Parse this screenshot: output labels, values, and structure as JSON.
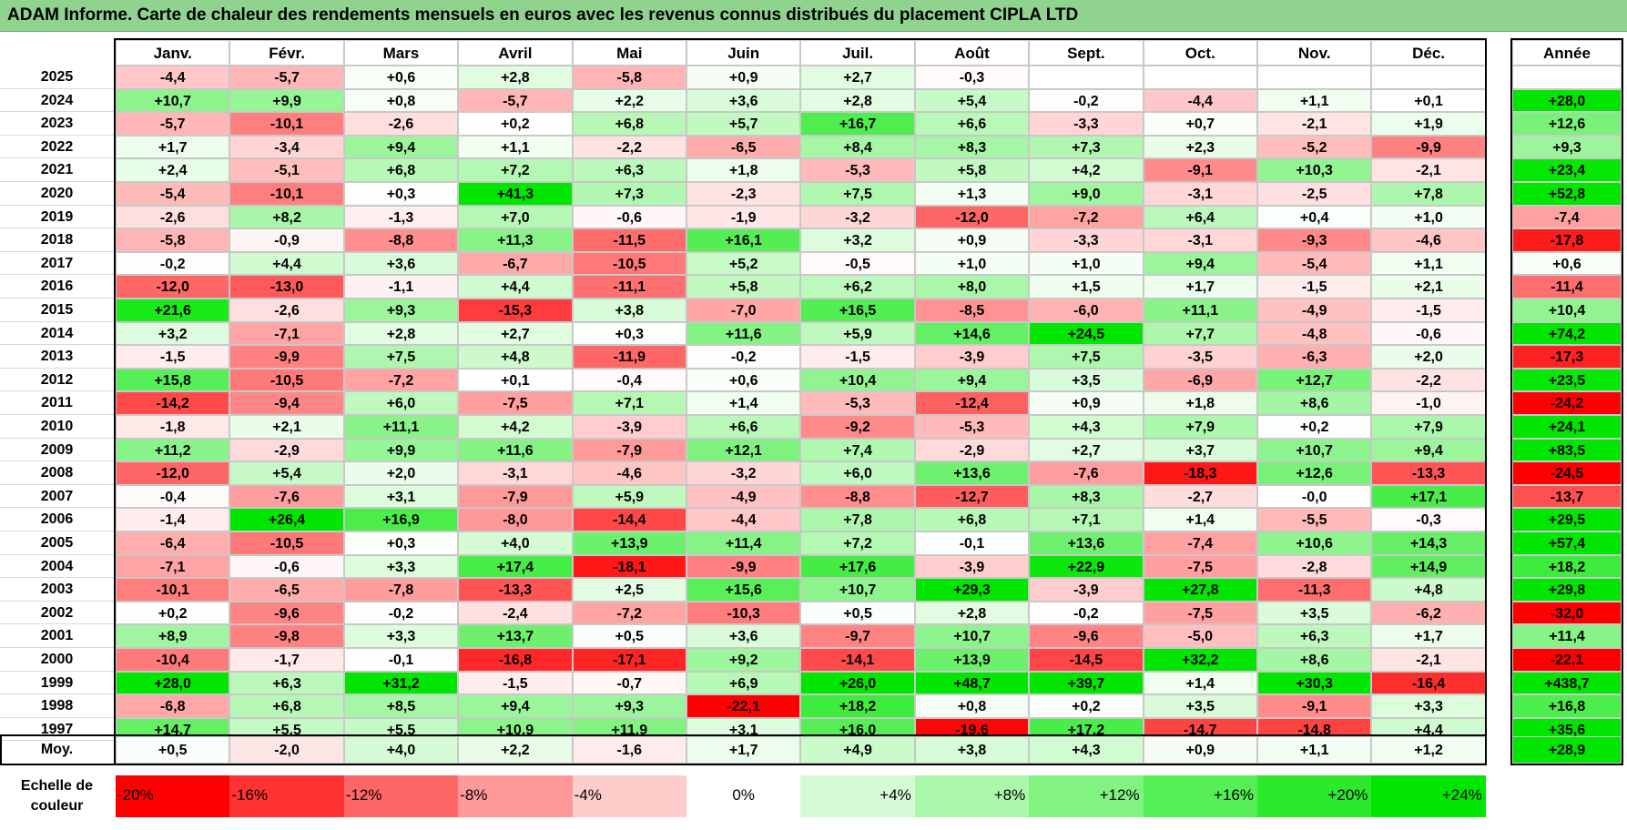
{
  "title": "ADAM Informe. Carte de chaleur des rendements mensuels en euros avec les revenus connus distribués du placement CIPLA LTD",
  "colors": {
    "title_bg": "#8fd38f",
    "neg_strong": "#ff0000",
    "pos_strong": "#00e600",
    "neutral": "#ffffff"
  },
  "chart_data": {
    "type": "heatmap",
    "title": "ADAM Informe. Carte de chaleur des rendements mensuels en euros avec les revenus connus distribués du placement CIPLA LTD",
    "months": [
      "Janv.",
      "Févr.",
      "Mars",
      "Avril",
      "Mai",
      "Juin",
      "Juil.",
      "Août",
      "Sept.",
      "Oct.",
      "Nov.",
      "Déc."
    ],
    "year_header": "Année",
    "rows": [
      {
        "year": "2025",
        "values": [
          -4.4,
          -5.7,
          0.6,
          2.8,
          -5.8,
          0.9,
          2.7,
          -0.3,
          null,
          null,
          null,
          null
        ],
        "labels": [
          "-4,4",
          "-5,7",
          "+0,6",
          "+2,8",
          "-5,8",
          "+0,9",
          "+2,7",
          "-0,3",
          "",
          "",
          "",
          ""
        ],
        "annual": null,
        "annual_label": ""
      },
      {
        "year": "2024",
        "values": [
          10.7,
          9.9,
          0.8,
          -5.7,
          2.2,
          3.6,
          2.8,
          5.4,
          -0.2,
          -4.4,
          1.1,
          0.1
        ],
        "labels": [
          "+10,7",
          "+9,9",
          "+0,8",
          "-5,7",
          "+2,2",
          "+3,6",
          "+2,8",
          "+5,4",
          "-0,2",
          "-4,4",
          "+1,1",
          "+0,1"
        ],
        "annual": 28.0,
        "annual_label": "+28,0"
      },
      {
        "year": "2023",
        "values": [
          -5.7,
          -10.1,
          -2.6,
          0.2,
          6.8,
          5.7,
          16.7,
          6.6,
          -3.3,
          0.7,
          -2.1,
          1.9
        ],
        "labels": [
          "-5,7",
          "-10,1",
          "-2,6",
          "+0,2",
          "+6,8",
          "+5,7",
          "+16,7",
          "+6,6",
          "-3,3",
          "+0,7",
          "-2,1",
          "+1,9"
        ],
        "annual": 12.6,
        "annual_label": "+12,6"
      },
      {
        "year": "2022",
        "values": [
          1.7,
          -3.4,
          9.4,
          1.1,
          -2.2,
          -6.5,
          8.4,
          8.3,
          7.3,
          2.3,
          -5.2,
          -9.9
        ],
        "labels": [
          "+1,7",
          "-3,4",
          "+9,4",
          "+1,1",
          "-2,2",
          "-6,5",
          "+8,4",
          "+8,3",
          "+7,3",
          "+2,3",
          "-5,2",
          "-9,9"
        ],
        "annual": 9.3,
        "annual_label": "+9,3"
      },
      {
        "year": "2021",
        "values": [
          2.4,
          -5.1,
          6.8,
          7.2,
          6.3,
          1.8,
          -5.3,
          5.8,
          4.2,
          -9.1,
          10.3,
          -2.1
        ],
        "labels": [
          "+2,4",
          "-5,1",
          "+6,8",
          "+7,2",
          "+6,3",
          "+1,8",
          "-5,3",
          "+5,8",
          "+4,2",
          "-9,1",
          "+10,3",
          "-2,1"
        ],
        "annual": 23.4,
        "annual_label": "+23,4"
      },
      {
        "year": "2020",
        "values": [
          -5.4,
          -10.1,
          0.3,
          41.3,
          7.3,
          -2.3,
          7.5,
          1.3,
          9.0,
          -3.1,
          -2.5,
          7.8
        ],
        "labels": [
          "-5,4",
          "-10,1",
          "+0,3",
          "+41,3",
          "+7,3",
          "-2,3",
          "+7,5",
          "+1,3",
          "+9,0",
          "-3,1",
          "-2,5",
          "+7,8"
        ],
        "annual": 52.8,
        "annual_label": "+52,8"
      },
      {
        "year": "2019",
        "values": [
          -2.6,
          8.2,
          -1.3,
          7.0,
          -0.6,
          -1.9,
          -3.2,
          -12.0,
          -7.2,
          6.4,
          0.4,
          1.0
        ],
        "labels": [
          "-2,6",
          "+8,2",
          "-1,3",
          "+7,0",
          "-0,6",
          "-1,9",
          "-3,2",
          "-12,0",
          "-7,2",
          "+6,4",
          "+0,4",
          "+1,0"
        ],
        "annual": -7.4,
        "annual_label": "-7,4"
      },
      {
        "year": "2018",
        "values": [
          -5.8,
          -0.9,
          -8.8,
          11.3,
          -11.5,
          16.1,
          3.2,
          0.9,
          -3.3,
          -3.1,
          -9.3,
          -4.6
        ],
        "labels": [
          "-5,8",
          "-0,9",
          "-8,8",
          "+11,3",
          "-11,5",
          "+16,1",
          "+3,2",
          "+0,9",
          "-3,3",
          "-3,1",
          "-9,3",
          "-4,6"
        ],
        "annual": -17.8,
        "annual_label": "-17,8"
      },
      {
        "year": "2017",
        "values": [
          -0.2,
          4.4,
          3.6,
          -6.7,
          -10.5,
          5.2,
          -0.5,
          1.0,
          1.0,
          9.4,
          -5.4,
          1.1
        ],
        "labels": [
          "-0,2",
          "+4,4",
          "+3,6",
          "-6,7",
          "-10,5",
          "+5,2",
          "-0,5",
          "+1,0",
          "+1,0",
          "+9,4",
          "-5,4",
          "+1,1"
        ],
        "annual": 0.6,
        "annual_label": "+0,6"
      },
      {
        "year": "2016",
        "values": [
          -12.0,
          -13.0,
          -1.1,
          4.4,
          -11.1,
          5.8,
          6.2,
          8.0,
          1.5,
          1.7,
          -1.5,
          2.1
        ],
        "labels": [
          "-12,0",
          "-13,0",
          "-1,1",
          "+4,4",
          "-11,1",
          "+5,8",
          "+6,2",
          "+8,0",
          "+1,5",
          "+1,7",
          "-1,5",
          "+2,1"
        ],
        "annual": -11.4,
        "annual_label": "-11,4"
      },
      {
        "year": "2015",
        "values": [
          21.6,
          -2.6,
          9.3,
          -15.3,
          3.8,
          -7.0,
          16.5,
          -8.5,
          -6.0,
          11.1,
          -4.9,
          -1.5
        ],
        "labels": [
          "+21,6",
          "-2,6",
          "+9,3",
          "-15,3",
          "+3,8",
          "-7,0",
          "+16,5",
          "-8,5",
          "-6,0",
          "+11,1",
          "-4,9",
          "-1,5"
        ],
        "annual": 10.4,
        "annual_label": "+10,4"
      },
      {
        "year": "2014",
        "values": [
          3.2,
          -7.1,
          2.8,
          2.7,
          0.3,
          11.6,
          5.9,
          14.6,
          24.5,
          7.7,
          -4.8,
          -0.6
        ],
        "labels": [
          "+3,2",
          "-7,1",
          "+2,8",
          "+2,7",
          "+0,3",
          "+11,6",
          "+5,9",
          "+14,6",
          "+24,5",
          "+7,7",
          "-4,8",
          "-0,6"
        ],
        "annual": 74.2,
        "annual_label": "+74,2"
      },
      {
        "year": "2013",
        "values": [
          -1.5,
          -9.9,
          7.5,
          4.8,
          -11.9,
          -0.2,
          -1.5,
          -3.9,
          7.5,
          -3.5,
          -6.3,
          2.0
        ],
        "labels": [
          "-1,5",
          "-9,9",
          "+7,5",
          "+4,8",
          "-11,9",
          "-0,2",
          "-1,5",
          "-3,9",
          "+7,5",
          "-3,5",
          "-6,3",
          "+2,0"
        ],
        "annual": -17.3,
        "annual_label": "-17,3"
      },
      {
        "year": "2012",
        "values": [
          15.8,
          -10.5,
          -7.2,
          0.1,
          -0.4,
          0.6,
          10.4,
          9.4,
          3.5,
          -6.9,
          12.7,
          -2.2
        ],
        "labels": [
          "+15,8",
          "-10,5",
          "-7,2",
          "+0,1",
          "-0,4",
          "+0,6",
          "+10,4",
          "+9,4",
          "+3,5",
          "-6,9",
          "+12,7",
          "-2,2"
        ],
        "annual": 23.5,
        "annual_label": "+23,5"
      },
      {
        "year": "2011",
        "values": [
          -14.2,
          -9.4,
          6.0,
          -7.5,
          7.1,
          1.4,
          -5.3,
          -12.4,
          0.9,
          1.8,
          8.6,
          -1.0
        ],
        "labels": [
          "-14,2",
          "-9,4",
          "+6,0",
          "-7,5",
          "+7,1",
          "+1,4",
          "-5,3",
          "-12,4",
          "+0,9",
          "+1,8",
          "+8,6",
          "-1,0"
        ],
        "annual": -24.2,
        "annual_label": "-24,2"
      },
      {
        "year": "2010",
        "values": [
          -1.8,
          2.1,
          11.1,
          4.2,
          -3.9,
          6.6,
          -9.2,
          -5.3,
          4.3,
          7.9,
          0.2,
          7.9
        ],
        "labels": [
          "-1,8",
          "+2,1",
          "+11,1",
          "+4,2",
          "-3,9",
          "+6,6",
          "-9,2",
          "-5,3",
          "+4,3",
          "+7,9",
          "+0,2",
          "+7,9"
        ],
        "annual": 24.1,
        "annual_label": "+24,1"
      },
      {
        "year": "2009",
        "values": [
          11.2,
          -2.9,
          9.9,
          11.6,
          -7.9,
          12.1,
          7.4,
          -2.9,
          2.7,
          3.7,
          10.7,
          9.4
        ],
        "labels": [
          "+11,2",
          "-2,9",
          "+9,9",
          "+11,6",
          "-7,9",
          "+12,1",
          "+7,4",
          "-2,9",
          "+2,7",
          "+3,7",
          "+10,7",
          "+9,4"
        ],
        "annual": 83.5,
        "annual_label": "+83,5"
      },
      {
        "year": "2008",
        "values": [
          -12.0,
          5.4,
          2.0,
          -3.1,
          -4.6,
          -3.2,
          6.0,
          13.6,
          -7.6,
          -18.3,
          12.6,
          -13.3
        ],
        "labels": [
          "-12,0",
          "+5,4",
          "+2,0",
          "-3,1",
          "-4,6",
          "-3,2",
          "+6,0",
          "+13,6",
          "-7,6",
          "-18,3",
          "+12,6",
          "-13,3"
        ],
        "annual": -24.5,
        "annual_label": "-24,5"
      },
      {
        "year": "2007",
        "values": [
          -0.4,
          -7.6,
          3.1,
          -7.9,
          5.9,
          -4.9,
          -8.8,
          -12.7,
          8.3,
          -2.7,
          0.0,
          17.1
        ],
        "labels": [
          "-0,4",
          "-7,6",
          "+3,1",
          "-7,9",
          "+5,9",
          "-4,9",
          "-8,8",
          "-12,7",
          "+8,3",
          "-2,7",
          "-0,0",
          "+17,1"
        ],
        "annual": -13.7,
        "annual_label": "-13,7"
      },
      {
        "year": "2006",
        "values": [
          -1.4,
          26.4,
          16.9,
          -8.0,
          -14.4,
          -4.4,
          7.8,
          6.8,
          7.1,
          1.4,
          -5.5,
          -0.3
        ],
        "labels": [
          "-1,4",
          "+26,4",
          "+16,9",
          "-8,0",
          "-14,4",
          "-4,4",
          "+7,8",
          "+6,8",
          "+7,1",
          "+1,4",
          "-5,5",
          "-0,3"
        ],
        "annual": 29.5,
        "annual_label": "+29,5"
      },
      {
        "year": "2005",
        "values": [
          -6.4,
          -10.5,
          0.3,
          4.0,
          13.9,
          11.4,
          7.2,
          -0.1,
          13.6,
          -7.4,
          10.6,
          14.3
        ],
        "labels": [
          "-6,4",
          "-10,5",
          "+0,3",
          "+4,0",
          "+13,9",
          "+11,4",
          "+7,2",
          "-0,1",
          "+13,6",
          "-7,4",
          "+10,6",
          "+14,3"
        ],
        "annual": 57.4,
        "annual_label": "+57,4"
      },
      {
        "year": "2004",
        "values": [
          -7.1,
          -0.6,
          3.3,
          17.4,
          -18.1,
          -9.9,
          17.6,
          -3.9,
          22.9,
          -7.5,
          -2.8,
          14.9
        ],
        "labels": [
          "-7,1",
          "-0,6",
          "+3,3",
          "+17,4",
          "-18,1",
          "-9,9",
          "+17,6",
          "-3,9",
          "+22,9",
          "-7,5",
          "-2,8",
          "+14,9"
        ],
        "annual": 18.2,
        "annual_label": "+18,2"
      },
      {
        "year": "2003",
        "values": [
          -10.1,
          -6.5,
          -7.8,
          -13.3,
          2.5,
          15.6,
          10.7,
          29.3,
          -3.9,
          27.8,
          -11.3,
          4.8
        ],
        "labels": [
          "-10,1",
          "-6,5",
          "-7,8",
          "-13,3",
          "+2,5",
          "+15,6",
          "+10,7",
          "+29,3",
          "-3,9",
          "+27,8",
          "-11,3",
          "+4,8"
        ],
        "annual": 29.8,
        "annual_label": "+29,8"
      },
      {
        "year": "2002",
        "values": [
          0.2,
          -9.6,
          -0.2,
          -2.4,
          -7.2,
          -10.3,
          0.5,
          2.8,
          -0.2,
          -7.5,
          3.5,
          -6.2
        ],
        "labels": [
          "+0,2",
          "-9,6",
          "-0,2",
          "-2,4",
          "-7,2",
          "-10,3",
          "+0,5",
          "+2,8",
          "-0,2",
          "-7,5",
          "+3,5",
          "-6,2"
        ],
        "annual": -32.0,
        "annual_label": "-32,0"
      },
      {
        "year": "2001",
        "values": [
          8.9,
          -9.8,
          3.3,
          13.7,
          0.5,
          3.6,
          -9.7,
          10.7,
          -9.6,
          -5.0,
          6.3,
          1.7
        ],
        "labels": [
          "+8,9",
          "-9,8",
          "+3,3",
          "+13,7",
          "+0,5",
          "+3,6",
          "-9,7",
          "+10,7",
          "-9,6",
          "-5,0",
          "+6,3",
          "+1,7"
        ],
        "annual": 11.4,
        "annual_label": "+11,4"
      },
      {
        "year": "2000",
        "values": [
          -10.4,
          -1.7,
          -0.1,
          -16.8,
          -17.1,
          9.2,
          -14.1,
          13.9,
          -14.5,
          32.2,
          8.6,
          -2.1
        ],
        "labels": [
          "-10,4",
          "-1,7",
          "-0,1",
          "-16,8",
          "-17,1",
          "+9,2",
          "-14,1",
          "+13,9",
          "-14,5",
          "+32,2",
          "+8,6",
          "-2,1"
        ],
        "annual": -22.1,
        "annual_label": "-22,1"
      },
      {
        "year": "1999",
        "values": [
          28.0,
          6.3,
          31.2,
          -1.5,
          -0.7,
          6.9,
          26.0,
          48.7,
          39.7,
          1.4,
          30.3,
          -16.4
        ],
        "labels": [
          "+28,0",
          "+6,3",
          "+31,2",
          "-1,5",
          "-0,7",
          "+6,9",
          "+26,0",
          "+48,7",
          "+39,7",
          "+1,4",
          "+30,3",
          "-16,4"
        ],
        "annual": 438.7,
        "annual_label": "+438,7"
      },
      {
        "year": "1998",
        "values": [
          -6.8,
          6.8,
          8.5,
          9.4,
          9.3,
          -22.1,
          18.2,
          0.8,
          0.2,
          3.5,
          -9.1,
          3.3
        ],
        "labels": [
          "-6,8",
          "+6,8",
          "+8,5",
          "+9,4",
          "+9,3",
          "-22,1",
          "+18,2",
          "+0,8",
          "+0,2",
          "+3,5",
          "-9,1",
          "+3,3"
        ],
        "annual": 16.8,
        "annual_label": "+16,8"
      },
      {
        "year": "1997",
        "values": [
          14.7,
          5.5,
          5.5,
          10.9,
          11.9,
          3.1,
          16.0,
          -19.6,
          17.2,
          -14.7,
          -14.8,
          4.4
        ],
        "labels": [
          "+14,7",
          "+5,5",
          "+5,5",
          "+10,9",
          "+11,9",
          "+3,1",
          "+16,0",
          "-19,6",
          "+17,2",
          "-14,7",
          "-14,8",
          "+4,4"
        ],
        "annual": 35.6,
        "annual_label": "+35,6"
      }
    ],
    "average": {
      "label": "Moy.",
      "values": [
        0.5,
        -2.0,
        4.0,
        2.2,
        -1.6,
        1.7,
        4.9,
        3.8,
        4.3,
        0.9,
        1.1,
        1.2
      ],
      "labels": [
        "+0,5",
        "-2,0",
        "+4,0",
        "+2,2",
        "-1,6",
        "+1,7",
        "+4,9",
        "+3,8",
        "+4,3",
        "+0,9",
        "+1,1",
        "+1,2"
      ],
      "annual": 28.9,
      "annual_label": "+28,9"
    },
    "scale": {
      "label_line1": "Echelle de",
      "label_line2": "couleur",
      "stops": [
        -20,
        -16,
        -12,
        -8,
        -4,
        0,
        4,
        8,
        12,
        16,
        20,
        24
      ],
      "labels": [
        "-20%",
        "-16%",
        "-12%",
        "-8%",
        "-4%",
        "0%",
        "+4%",
        "+8%",
        "+12%",
        "+16%",
        "+20%",
        "+24%"
      ]
    }
  }
}
